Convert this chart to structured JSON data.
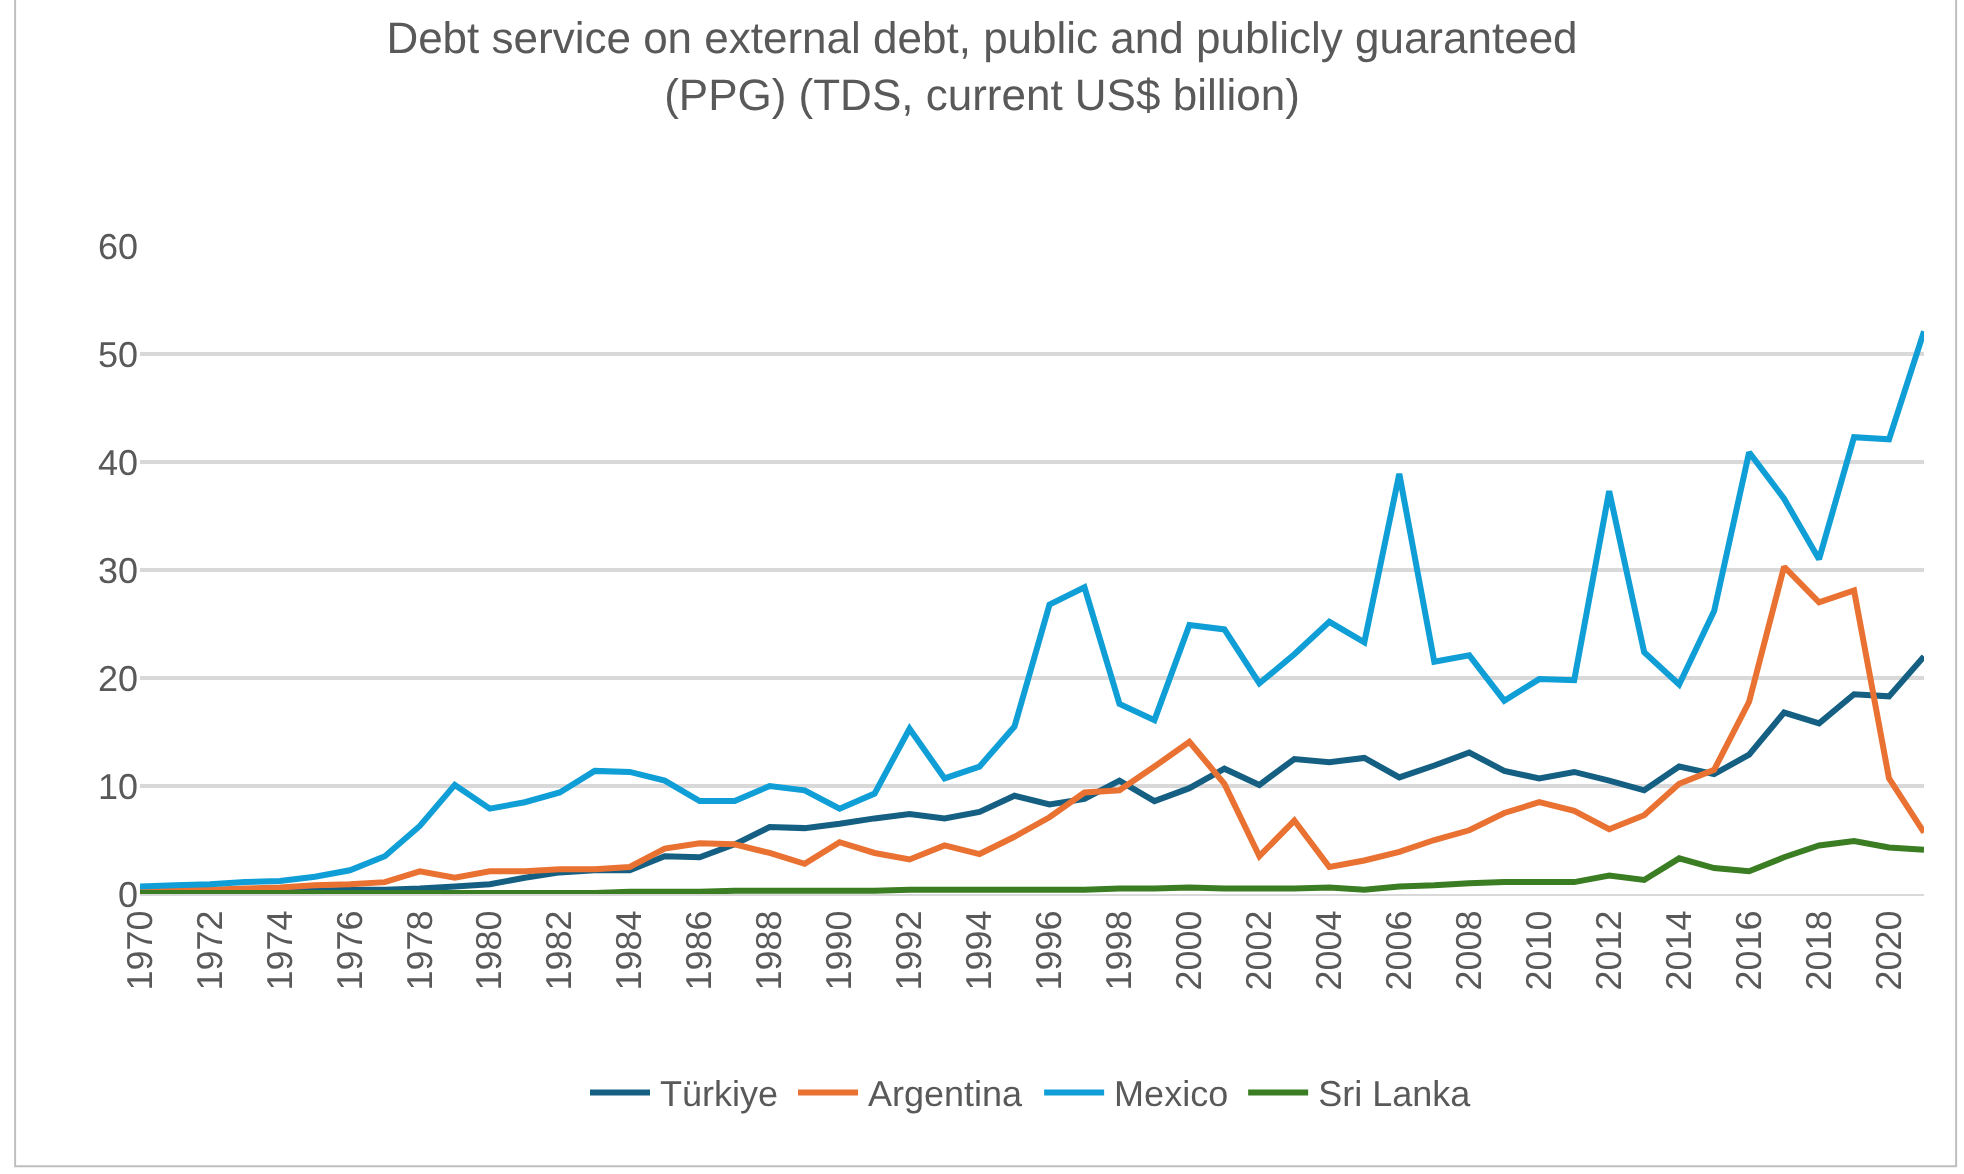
{
  "chart_data": {
    "type": "line",
    "title": "Debt service on external debt, public and publicly guaranteed\n(PPG) (TDS, current US$ billion)",
    "x": [
      1970,
      1971,
      1972,
      1973,
      1974,
      1975,
      1976,
      1977,
      1978,
      1979,
      1980,
      1981,
      1982,
      1983,
      1984,
      1985,
      1986,
      1987,
      1988,
      1989,
      1990,
      1991,
      1992,
      1993,
      1994,
      1995,
      1996,
      1997,
      1998,
      1999,
      2000,
      2001,
      2002,
      2003,
      2004,
      2005,
      2006,
      2007,
      2008,
      2009,
      2010,
      2011,
      2012,
      2013,
      2014,
      2015,
      2016,
      2017,
      2018,
      2019,
      2020,
      2021
    ],
    "series": [
      {
        "name": "Türkiye",
        "color": "#156082",
        "values": [
          0.3,
          0.3,
          0.3,
          0.3,
          0.3,
          0.3,
          0.4,
          0.4,
          0.5,
          0.7,
          0.9,
          1.5,
          2.0,
          2.2,
          2.2,
          3.5,
          3.4,
          4.6,
          6.2,
          6.1,
          6.5,
          7.0,
          7.4,
          7.0,
          7.6,
          9.1,
          8.3,
          8.8,
          10.5,
          8.6,
          9.8,
          11.6,
          10.1,
          12.5,
          12.2,
          12.6,
          10.8,
          11.9,
          13.1,
          11.4,
          10.7,
          11.3,
          10.5,
          9.6,
          11.8,
          11.1,
          12.9,
          16.8,
          15.8,
          18.5,
          18.3,
          22.0
        ]
      },
      {
        "name": "Argentina",
        "color": "#e97132",
        "values": [
          0.3,
          0.4,
          0.4,
          0.5,
          0.6,
          0.8,
          0.9,
          1.1,
          2.1,
          1.5,
          2.1,
          2.1,
          2.3,
          2.3,
          2.5,
          4.2,
          4.7,
          4.6,
          3.8,
          2.8,
          4.8,
          3.8,
          3.2,
          4.5,
          3.7,
          5.3,
          7.1,
          9.4,
          9.6,
          11.8,
          14.1,
          10.2,
          3.5,
          6.8,
          2.5,
          3.1,
          3.9,
          5.0,
          5.9,
          7.5,
          8.5,
          7.7,
          6.0,
          7.3,
          10.2,
          11.5,
          17.8,
          30.3,
          27.0,
          28.1,
          10.7,
          5.7
        ]
      },
      {
        "name": "Mexico",
        "color": "#0f9ed5",
        "values": [
          0.7,
          0.8,
          0.9,
          1.1,
          1.2,
          1.6,
          2.2,
          3.5,
          6.3,
          10.1,
          7.9,
          8.5,
          9.4,
          11.4,
          11.3,
          10.5,
          8.6,
          8.6,
          10.0,
          9.6,
          7.9,
          9.3,
          15.3,
          10.7,
          11.8,
          15.5,
          26.8,
          28.4,
          17.6,
          16.1,
          24.9,
          24.5,
          19.5,
          22.2,
          25.2,
          23.3,
          38.9,
          21.5,
          22.1,
          17.9,
          19.9,
          19.8,
          37.3,
          22.4,
          19.4,
          26.2,
          40.9,
          36.6,
          31.0,
          42.3,
          42.1,
          52.1
        ]
      },
      {
        "name": "Sri Lanka",
        "color": "#3b7d23",
        "values": [
          0.1,
          0.1,
          0.1,
          0.1,
          0.1,
          0.1,
          0.1,
          0.1,
          0.1,
          0.1,
          0.1,
          0.1,
          0.1,
          0.1,
          0.2,
          0.2,
          0.2,
          0.3,
          0.3,
          0.3,
          0.3,
          0.3,
          0.4,
          0.4,
          0.4,
          0.4,
          0.4,
          0.4,
          0.5,
          0.5,
          0.6,
          0.5,
          0.5,
          0.5,
          0.6,
          0.4,
          0.7,
          0.8,
          1.0,
          1.1,
          1.1,
          1.1,
          1.7,
          1.3,
          3.3,
          2.4,
          2.1,
          3.4,
          4.5,
          4.9,
          4.3,
          4.1
        ]
      }
    ],
    "xlim": [
      1970,
      2021
    ],
    "xticks": [
      1970,
      1972,
      1974,
      1976,
      1978,
      1980,
      1982,
      1984,
      1986,
      1988,
      1990,
      1992,
      1994,
      1996,
      1998,
      2000,
      2002,
      2004,
      2006,
      2008,
      2010,
      2012,
      2014,
      2016,
      2018,
      2020
    ],
    "ylim": [
      0,
      60
    ],
    "yticks": [
      0,
      10,
      20,
      30,
      40,
      50,
      60
    ],
    "grid": "y",
    "legend": "bottom",
    "marker": "none",
    "line_style": "solid"
  }
}
